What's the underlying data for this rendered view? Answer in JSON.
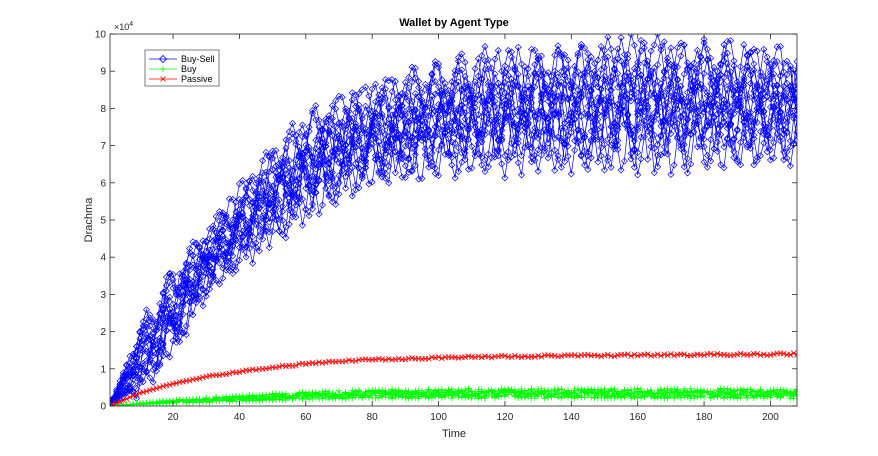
{
  "chart_data": {
    "type": "line",
    "title": "Wallet by Agent Type",
    "xlabel": "Time",
    "ylabel": "Drachma",
    "y_exponent_base": "×10",
    "y_exponent_power": "4",
    "xlim": [
      1,
      208
    ],
    "ylim": [
      0,
      100000
    ],
    "x_ticks": [
      20,
      40,
      60,
      80,
      100,
      120,
      140,
      160,
      180,
      200
    ],
    "y_ticks": [
      0,
      10000,
      20000,
      30000,
      40000,
      50000,
      60000,
      70000,
      80000,
      90000,
      100000
    ],
    "y_tick_labels": [
      "0",
      "1",
      "2",
      "3",
      "4",
      "5",
      "6",
      "7",
      "8",
      "9",
      "10"
    ],
    "x_tick_labels": [
      "20",
      "40",
      "60",
      "80",
      "100",
      "120",
      "140",
      "160",
      "180",
      "200"
    ],
    "grid": false,
    "legend_position": "top-left",
    "series": [
      {
        "name": "Buy-Sell",
        "color": "#0000ff",
        "marker": "diamond",
        "envelope_x": [
          1,
          10,
          20,
          30,
          40,
          50,
          60,
          70,
          80,
          100,
          120,
          140,
          160,
          180,
          200,
          208
        ],
        "envelope_low": [
          0,
          5000,
          17000,
          32000,
          40000,
          48000,
          54000,
          60000,
          63000,
          67000,
          68000,
          68500,
          69000,
          69500,
          70000,
          70000
        ],
        "envelope_high": [
          0,
          20000,
          34000,
          45000,
          56000,
          66000,
          74000,
          79000,
          83000,
          88000,
          91000,
          92000,
          94000,
          93000,
          92000,
          91000
        ],
        "curve_count": 12
      },
      {
        "name": "Buy",
        "color": "#00ff00",
        "marker": "plus",
        "x": [
          1,
          20,
          40,
          60,
          80,
          100,
          120,
          140,
          160,
          180,
          200,
          208
        ],
        "y": [
          0,
          1200,
          2000,
          2800,
          3200,
          3300,
          3400,
          3400,
          3400,
          3400,
          3300,
          3300
        ]
      },
      {
        "name": "Passive",
        "color": "#ff0000",
        "marker": "x",
        "x": [
          1,
          10,
          20,
          30,
          40,
          50,
          60,
          70,
          80,
          100,
          120,
          140,
          160,
          180,
          200,
          208
        ],
        "y": [
          0,
          3500,
          6000,
          7800,
          9200,
          10400,
          11300,
          12000,
          12500,
          13000,
          13300,
          13500,
          13700,
          13800,
          13900,
          14000
        ]
      }
    ]
  }
}
